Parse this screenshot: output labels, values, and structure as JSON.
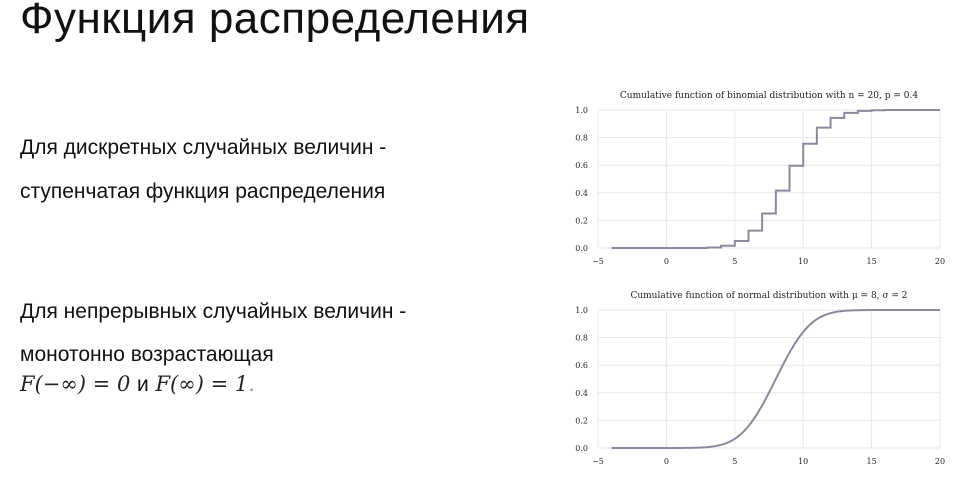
{
  "slide": {
    "title": "Функция распределения",
    "discrete_line1": "Для дискретных случайных величин -",
    "discrete_line2": "ступенчатая функция распределения",
    "continuous_line1": "Для непрерывных случайных величин -",
    "continuous_line2": "монотонно возрастающая",
    "formula": {
      "left": "F(−∞) = 0",
      "conjunction": "и",
      "right": "F(∞) = 1",
      "end": "."
    }
  },
  "chart_data": [
    {
      "type": "line",
      "step": true,
      "title": "Cumulative function of binomial distribution with n = 20, p = 0.4",
      "xlabel": "",
      "ylabel": "",
      "xlim": [
        -5,
        20
      ],
      "ylim": [
        0.0,
        1.0
      ],
      "xticks": [
        "−5",
        "0",
        "5",
        "10",
        "15",
        "20"
      ],
      "yticks": [
        "0.0",
        "0.2",
        "0.4",
        "0.6",
        "0.8",
        "1.0"
      ],
      "grid": true,
      "line_color": "#8a8a9e",
      "x": [
        -4,
        0,
        1,
        2,
        3,
        4,
        5,
        6,
        7,
        8,
        9,
        10,
        11,
        12,
        13,
        14,
        15,
        16,
        17,
        18,
        19,
        20
      ],
      "values": [
        0.0,
        0.0,
        0.0,
        0.0,
        0.004,
        0.016,
        0.051,
        0.126,
        0.25,
        0.416,
        0.596,
        0.755,
        0.872,
        0.943,
        0.979,
        0.994,
        0.998,
        1.0,
        1.0,
        1.0,
        1.0,
        1.0
      ]
    },
    {
      "type": "line",
      "title": "Cumulative function of normal distribution with μ = 8, σ = 2",
      "xlabel": "",
      "ylabel": "",
      "xlim": [
        -5,
        20
      ],
      "ylim": [
        0.0,
        1.0
      ],
      "xticks": [
        "−5",
        "0",
        "5",
        "10",
        "15",
        "20"
      ],
      "yticks": [
        "0.0",
        "0.2",
        "0.4",
        "0.6",
        "0.8",
        "1.0"
      ],
      "grid": true,
      "line_color": "#8a8a9e",
      "mu": 8,
      "sigma": 2,
      "x": [
        -4,
        0,
        2,
        3,
        4,
        5,
        6,
        7,
        8,
        9,
        10,
        11,
        12,
        13,
        14,
        16,
        20
      ],
      "values": [
        0.0,
        0.0,
        0.001,
        0.006,
        0.023,
        0.067,
        0.159,
        0.309,
        0.5,
        0.691,
        0.841,
        0.933,
        0.977,
        0.994,
        0.999,
        1.0,
        1.0
      ]
    }
  ]
}
